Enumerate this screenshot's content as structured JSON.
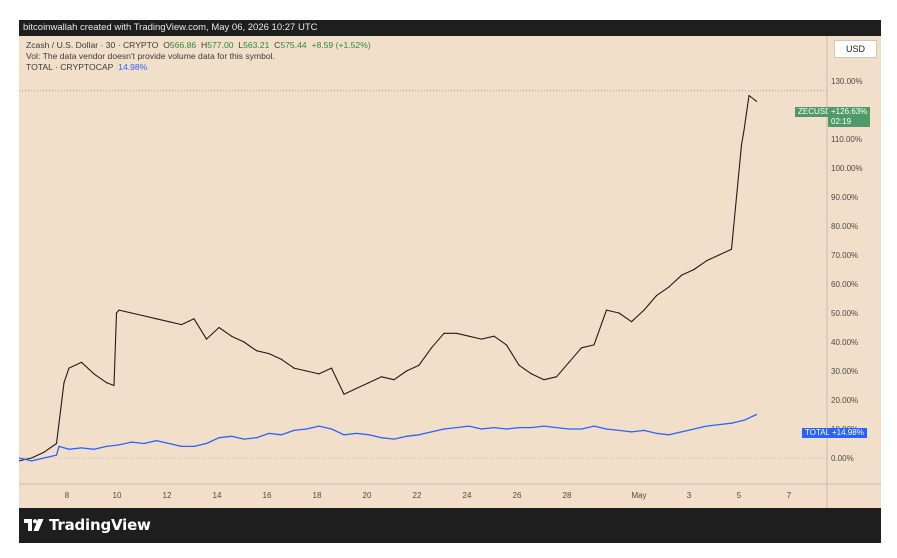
{
  "header": {
    "text": "bitcoinwallah created with TradingView.com, May 06, 2026 10:27 UTC"
  },
  "legend": {
    "symbol": "Zcash / U.S. Dollar · 30 · CRYPTO",
    "o_label": "O",
    "o_value": "566.86",
    "h_label": "H",
    "h_value": "577.00",
    "l_label": "L",
    "l_value": "563.21",
    "c_label": "C",
    "c_value": "575.44",
    "change": "+8.59 (+1.52%)",
    "vol_note": "Vol: The data vendor doesn't provide volume data for this symbol.",
    "total_label": "TOTAL · CRYPTOCAP",
    "total_value": "14.98%"
  },
  "currency_button": "USD",
  "tags": {
    "zec_name": "ZECUSD",
    "zec_value": "+126.63%",
    "zec_countdown": "02:19",
    "total_name": "TOTAL",
    "total_value": "+14.98%"
  },
  "colors": {
    "zec": "#1d1d1d",
    "total": "#2962ff",
    "zec_tag": "#4f9a69",
    "background": "#f2dfca"
  },
  "logo": {
    "text": "TradingView",
    "icon": "tradingview-logo-icon"
  },
  "chart_data": {
    "type": "line",
    "title": "",
    "xlabel": "",
    "ylabel": "",
    "x_ticks": [
      "8",
      "10",
      "12",
      "14",
      "16",
      "18",
      "20",
      "22",
      "24",
      "26",
      "28",
      "May",
      "3",
      "5",
      "7"
    ],
    "y_ticks": [
      "0.00%",
      "10.00%",
      "20.00%",
      "30.00%",
      "40.00%",
      "50.00%",
      "60.00%",
      "70.00%",
      "80.00%",
      "90.00%",
      "100.00%",
      "110.00%",
      "120.00%",
      "130.00%"
    ],
    "ylim": [
      -10,
      140
    ],
    "x_unit": "days from start of April 7",
    "series": [
      {
        "name": "ZECUSD",
        "x": [
          0,
          0.5,
          1.0,
          1.5,
          1.8,
          2.0,
          2.5,
          3.0,
          3.5,
          3.8,
          3.9,
          4.0,
          4.5,
          5.0,
          5.5,
          6.0,
          6.5,
          7.0,
          7.5,
          8.0,
          8.5,
          9.0,
          9.5,
          10.0,
          10.5,
          11.0,
          11.5,
          12.0,
          12.5,
          13.0,
          13.5,
          14.0,
          14.5,
          15.0,
          15.5,
          16.0,
          16.5,
          17.0,
          17.5,
          18.0,
          18.5,
          19.0,
          19.5,
          20.0,
          20.5,
          21.0,
          21.5,
          22.0,
          22.5,
          23.0,
          23.5,
          24.0,
          24.5,
          25.0,
          25.5,
          26.0,
          26.5,
          27.0,
          27.5,
          28.0,
          28.5,
          28.7,
          28.9,
          29.0,
          29.2,
          29.5
        ],
        "values": [
          -1,
          0,
          2,
          5,
          26,
          31,
          33,
          29,
          26,
          25,
          50,
          51,
          50,
          49,
          48,
          47,
          46,
          48,
          41,
          45,
          42,
          40,
          37,
          36,
          34,
          31,
          30,
          29,
          31,
          22,
          24,
          26,
          28,
          27,
          30,
          32,
          38,
          43,
          43,
          42,
          41,
          42,
          39,
          32,
          29,
          27,
          28,
          33,
          38,
          39,
          51,
          50,
          47,
          51,
          56,
          59,
          63,
          65,
          68,
          70,
          72,
          90,
          108,
          113,
          125,
          123
        ]
      },
      {
        "name": "TOTAL",
        "x": [
          0,
          0.5,
          1.0,
          1.5,
          1.6,
          2.0,
          2.5,
          3.0,
          3.5,
          4.0,
          4.5,
          5.0,
          5.5,
          6.0,
          6.5,
          7.0,
          7.5,
          8.0,
          8.5,
          9.0,
          9.5,
          10.0,
          10.5,
          11.0,
          11.5,
          12.0,
          12.5,
          13.0,
          13.5,
          14.0,
          14.5,
          15.0,
          15.5,
          16.0,
          16.5,
          17.0,
          17.5,
          18.0,
          18.5,
          19.0,
          19.5,
          20.0,
          20.5,
          21.0,
          21.5,
          22.0,
          22.5,
          23.0,
          23.5,
          24.0,
          24.5,
          25.0,
          25.5,
          26.0,
          26.5,
          27.0,
          27.5,
          28.0,
          28.5,
          29.0,
          29.5
        ],
        "values": [
          0,
          -1,
          0,
          1,
          4,
          3,
          3.5,
          3,
          4,
          4.5,
          5.5,
          5,
          6,
          5,
          4,
          4,
          5,
          7,
          7.5,
          6.5,
          7,
          8.5,
          8,
          9.5,
          10,
          11,
          10,
          8,
          8.5,
          8,
          7,
          6.5,
          7.5,
          8,
          9,
          10,
          10.5,
          11,
          10,
          10.5,
          10,
          10.5,
          10.5,
          11,
          10.5,
          10,
          10,
          11,
          10,
          9.5,
          9,
          9.5,
          8.5,
          8,
          9,
          10,
          11,
          11.5,
          12,
          13,
          15
        ]
      }
    ],
    "last_values": {
      "ZECUSD": "+126.63%",
      "TOTAL": "+14.98%"
    },
    "grid": false,
    "legend": "top-left"
  }
}
